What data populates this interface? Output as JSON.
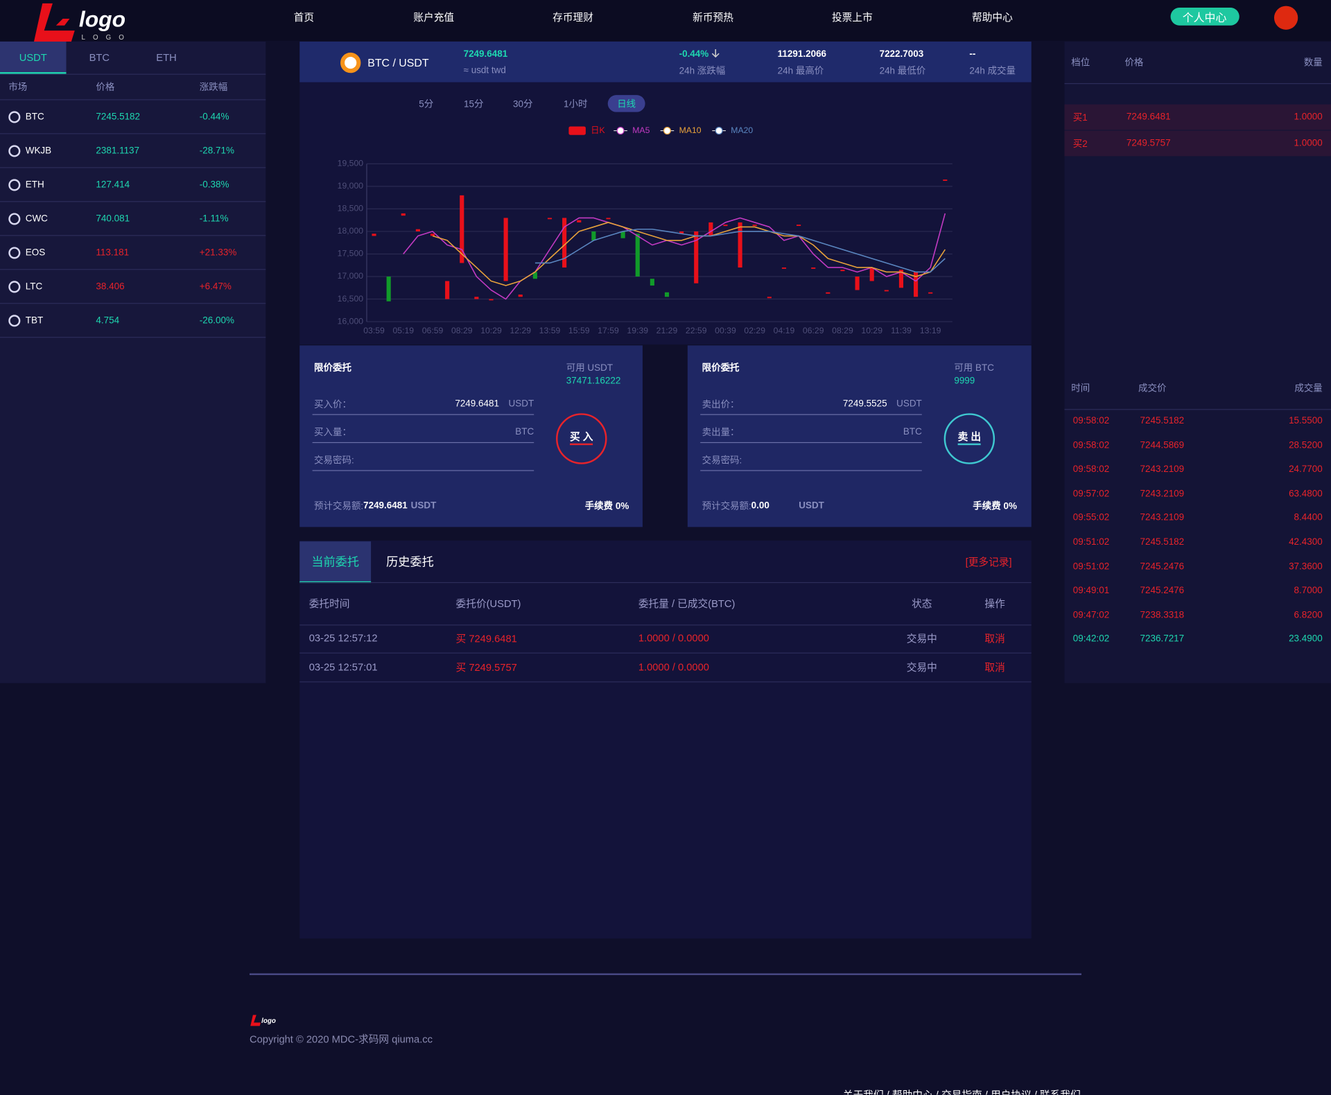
{
  "nav": {
    "logo_text": "logo",
    "logo_sub": "LOGO",
    "items": [
      "首页",
      "账户充值",
      "存币理财",
      "新币预热",
      "投票上市",
      "帮助中心"
    ],
    "user": "个人中心"
  },
  "market": {
    "tabs": [
      "USDT",
      "BTC",
      "ETH"
    ],
    "active_tab": 0,
    "headers": [
      "市场",
      "价格",
      "涨跌幅"
    ],
    "rows": [
      {
        "name": "BTC",
        "price": "7245.5182",
        "change": "-0.44%"
      },
      {
        "name": "WKJB",
        "price": "2381.1137",
        "change": "-28.71%"
      },
      {
        "name": "ETH",
        "price": "127.414",
        "change": "-0.38%"
      },
      {
        "name": "CWC",
        "price": "740.081",
        "change": "-1.11%"
      },
      {
        "name": "EOS",
        "price": "113.181",
        "change": "+21.33%"
      },
      {
        "name": "LTC",
        "price": "38.406",
        "change": "+6.47%"
      },
      {
        "name": "TBT",
        "price": "4.754",
        "change": "-26.00%"
      }
    ]
  },
  "ticker": {
    "pair": "BTC / USDT",
    "price": "7249.6481",
    "price_sub": "≈ usdt twd",
    "stats": [
      {
        "value": "-0.44%",
        "label": "24h 涨跌幅"
      },
      {
        "value": "11291.2066",
        "label": "24h 最高价"
      },
      {
        "value": "7222.7003",
        "label": "24h 最低价"
      },
      {
        "value": "--",
        "label": "24h 成交量"
      }
    ]
  },
  "periods": {
    "items": [
      "5分",
      "15分",
      "30分",
      "1小时",
      "日线"
    ],
    "active": 4
  },
  "chart_data": {
    "type": "candlestick",
    "categories": [
      "03:59",
      null,
      "05:19",
      null,
      "06:59",
      null,
      "08:29",
      null,
      "10:29",
      null,
      "12:29",
      null,
      "13:59",
      null,
      "15:59",
      null,
      "17:59",
      null,
      "19:39",
      null,
      "21:29",
      null,
      "22:59",
      null,
      "00:39",
      null,
      "02:29",
      null,
      "04:19",
      null,
      "06:29",
      null,
      "08:29",
      null,
      "10:29",
      null,
      "11:39",
      null,
      "13:19",
      null
    ],
    "candles": {
      "name": "日K",
      "color": "#e8101a",
      "up_color": "#119a2a",
      "open": [
        17950,
        16450,
        18400,
        18050,
        17950,
        16900,
        18800,
        16550,
        16500,
        18300,
        16600,
        16950,
        18300,
        18300,
        18250,
        17800,
        18300,
        17850,
        17000,
        16800,
        16550,
        18000,
        18000,
        18200,
        18150,
        18200,
        18150,
        16550,
        17200,
        18150,
        17200,
        16650,
        17150,
        17000,
        17200,
        16700,
        17150,
        17100,
        16650,
        19150
      ],
      "close": [
        17900,
        17000,
        18350,
        18000,
        17900,
        16500,
        17300,
        16500,
        16480,
        16900,
        16550,
        17100,
        18280,
        17200,
        18200,
        18000,
        18280,
        18000,
        17950,
        16950,
        16650,
        17950,
        16850,
        17900,
        18120,
        17200,
        18120,
        16520,
        17180,
        18130,
        17180,
        16620,
        17120,
        16700,
        16900,
        16680,
        16750,
        16550,
        16630,
        19130
      ]
    },
    "series": [
      {
        "name": "MA5",
        "color": "#c23ac2",
        "values": [
          null,
          null,
          17500,
          17900,
          18000,
          17700,
          17600,
          17000,
          16700,
          16500,
          16900,
          17100,
          17600,
          18100,
          18300,
          18300,
          18200,
          18100,
          17900,
          17700,
          17800,
          17700,
          17800,
          18000,
          18200,
          18300,
          18200,
          18100,
          17800,
          17900,
          17500,
          17200,
          17200,
          17100,
          17200,
          17000,
          17100,
          16900,
          17200,
          18400
        ]
      },
      {
        "name": "MA10",
        "color": "#e8a23a",
        "values": [
          null,
          null,
          null,
          null,
          17900,
          17800,
          17500,
          17200,
          16900,
          16800,
          16900,
          17100,
          17400,
          17700,
          18000,
          18100,
          18200,
          18100,
          18000,
          17900,
          17800,
          17800,
          17900,
          17900,
          18000,
          18100,
          18100,
          18000,
          17900,
          17900,
          17700,
          17400,
          17300,
          17200,
          17200,
          17100,
          17100,
          17000,
          17100,
          17600
        ]
      },
      {
        "name": "MA20",
        "color": "#5a86c0",
        "values": [
          null,
          null,
          null,
          null,
          null,
          null,
          null,
          null,
          null,
          null,
          null,
          17300,
          17300,
          17400,
          17600,
          17800,
          17900,
          18000,
          18050,
          18050,
          18000,
          17950,
          17900,
          17900,
          17950,
          18000,
          18000,
          18000,
          17950,
          17900,
          17800,
          17700,
          17600,
          17500,
          17400,
          17300,
          17200,
          17100,
          17100,
          17400
        ]
      }
    ],
    "ylim": [
      16000,
      19500
    ],
    "yticks": [
      {
        "value": 16000,
        "label": "16,000"
      },
      {
        "value": 16500,
        "label": "16,500"
      },
      {
        "value": 17000,
        "label": "17,000"
      },
      {
        "value": 17500,
        "label": "17,500"
      },
      {
        "value": 18000,
        "label": "18,000"
      },
      {
        "value": 18500,
        "label": "18,500"
      },
      {
        "value": 19000,
        "label": "19,000"
      },
      {
        "value": 19500,
        "label": "19,500"
      }
    ],
    "grid": true
  },
  "buy": {
    "title": "限价委托",
    "avail_label": "可用 USDT",
    "avail": "37471.16222",
    "fields": [
      {
        "label": "买入价：",
        "value": "7249.6481",
        "unit": "USDT"
      },
      {
        "label": "买入量：",
        "unit": "BTC"
      },
      {
        "label": "交易密码:"
      }
    ],
    "button": "买 入",
    "estimate_label": "预计交易额:",
    "estimate": "7249.6481",
    "estimate_unit": "USDT",
    "fee": "手续费 0%"
  },
  "sell": {
    "title": "限价委托",
    "avail_label": "可用 BTC",
    "avail": "9999",
    "fields": [
      {
        "label": "卖出价：",
        "value": "7249.5525",
        "unit": "USDT"
      },
      {
        "label": "卖出量：",
        "unit": "BTC"
      },
      {
        "label": "交易密码:"
      }
    ],
    "button": "卖 出",
    "estimate_label": "预计交易额:",
    "estimate": "0.00",
    "estimate_unit": "USDT",
    "fee": "手续费 0%"
  },
  "orders": {
    "tabs": [
      "当前委托",
      "历史委托"
    ],
    "active": 0,
    "more": "[更多记录]",
    "headers": [
      "委托时间",
      "委托价(USDT)",
      "委托量 / 已成交(BTC)",
      "状态",
      "操作"
    ],
    "rows": [
      [
        "03-25 12:57:12",
        "买 7249.6481",
        "1.0000 / 0.0000",
        "交易中",
        "取消"
      ],
      [
        "03-25 12:57:01",
        "买 7249.5757",
        "1.0000 / 0.0000",
        "交易中",
        "取消"
      ]
    ]
  },
  "orderbook": {
    "headers": [
      "档位",
      "价格",
      "数量"
    ],
    "rows": [
      [
        "买1",
        "7249.6481",
        "1.0000"
      ],
      [
        "买2",
        "7249.5757",
        "1.0000"
      ]
    ]
  },
  "trades": {
    "headers": [
      "时间",
      "成交价",
      "成交量"
    ],
    "sell_color": "#e8232a",
    "buy_color": "#1ed7b0",
    "rows": [
      {
        "time": "09:58:02",
        "price": "7245.5182",
        "amount": "15.5500",
        "side": "sell"
      },
      {
        "time": "09:58:02",
        "price": "7244.5869",
        "amount": "28.5200",
        "side": "sell"
      },
      {
        "time": "09:58:02",
        "price": "7243.2109",
        "amount": "24.7700",
        "side": "sell"
      },
      {
        "time": "09:57:02",
        "price": "7243.2109",
        "amount": "63.4800",
        "side": "sell"
      },
      {
        "time": "09:55:02",
        "price": "7243.2109",
        "amount": "8.4400",
        "side": "sell"
      },
      {
        "time": "09:51:02",
        "price": "7245.5182",
        "amount": "42.4300",
        "side": "sell"
      },
      {
        "time": "09:51:02",
        "price": "7245.2476",
        "amount": "37.3600",
        "side": "sell"
      },
      {
        "time": "09:49:01",
        "price": "7245.2476",
        "amount": "8.7000",
        "side": "sell"
      },
      {
        "time": "09:47:02",
        "price": "7238.3318",
        "amount": "6.8200",
        "side": "sell"
      },
      {
        "time": "09:42:02",
        "price": "7236.7217",
        "amount": "23.4900",
        "side": "buy"
      }
    ]
  },
  "footer": {
    "logo_text": "logo",
    "copyright": "Copyright © 2020 MDC-求码网 qiuma.cc",
    "links": "关于我们 / 帮助中心 / 交易指南 / 用户协议 / 联系我们"
  }
}
